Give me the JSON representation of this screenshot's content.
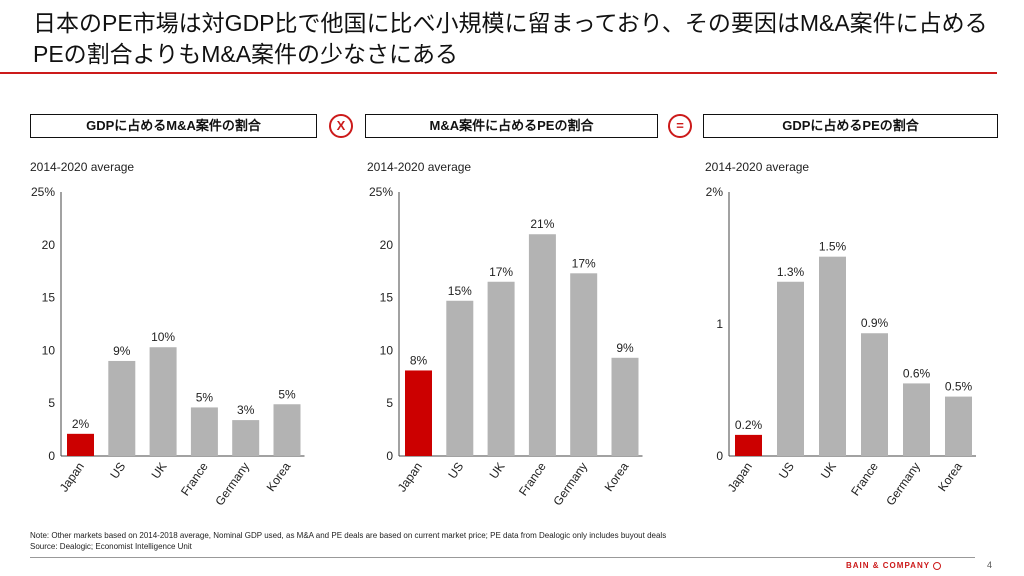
{
  "title": "日本のPE市場は対GDP比で他国に比べ小規模に留まっており、その要因はM&A案件に占めるPEの割合よりもM&A案件の少なさにある",
  "header_boxes": [
    "GDPに占めるM&A案件の割合",
    "M&A案件に占めるPEの割合",
    "GDPに占めるPEの割合"
  ],
  "operators": [
    "X",
    "="
  ],
  "subtitles": [
    "2014-2020 average",
    "2014-2020 average",
    "2014-2020 average"
  ],
  "colors": {
    "highlight": "#cc0000",
    "bar": "#b3b3b3",
    "title_rule": "#cc1a1a"
  },
  "chart_data": [
    {
      "type": "bar",
      "title": "GDPに占めるM&A案件の割合",
      "subtitle": "2014-2020 average",
      "categories": [
        "Japan",
        "US",
        "UK",
        "France",
        "Germany",
        "Korea"
      ],
      "values": [
        2.1,
        9.0,
        10.3,
        4.6,
        3.4,
        4.9
      ],
      "data_labels": [
        "2%",
        "9%",
        "10%",
        "5%",
        "3%",
        "5%"
      ],
      "ylim": [
        0,
        25
      ],
      "yticks": [
        0,
        5,
        10,
        15,
        20,
        25
      ],
      "ytick_labels": [
        "0",
        "5",
        "10",
        "15",
        "20",
        "25%"
      ],
      "highlight": "Japan"
    },
    {
      "type": "bar",
      "title": "M&A案件に占めるPEの割合",
      "subtitle": "2014-2020 average",
      "categories": [
        "Japan",
        "US",
        "UK",
        "France",
        "Germany",
        "Korea"
      ],
      "values": [
        8.1,
        14.7,
        16.5,
        21.0,
        17.3,
        9.3
      ],
      "data_labels": [
        "8%",
        "15%",
        "17%",
        "21%",
        "17%",
        "9%"
      ],
      "ylim": [
        0,
        25
      ],
      "yticks": [
        0,
        5,
        10,
        15,
        20,
        25
      ],
      "ytick_labels": [
        "0",
        "5",
        "10",
        "15",
        "20",
        "25%"
      ],
      "highlight": "Japan"
    },
    {
      "type": "bar",
      "title": "GDPに占めるPEの割合",
      "subtitle": "2014-2020 average",
      "categories": [
        "Japan",
        "US",
        "UK",
        "France",
        "Germany",
        "Korea"
      ],
      "values": [
        0.16,
        1.32,
        1.51,
        0.93,
        0.55,
        0.45
      ],
      "data_labels": [
        "0.2%",
        "1.3%",
        "1.5%",
        "0.9%",
        "0.6%",
        "0.5%"
      ],
      "ylim": [
        0,
        2
      ],
      "yticks": [
        0,
        1,
        2
      ],
      "ytick_labels": [
        "0",
        "1",
        "2%"
      ],
      "highlight": "Japan"
    }
  ],
  "note": "Note: Other markets based on 2014-2018 average, Nominal GDP used, as M&A and PE deals are based on current market price; PE data from Dealogic only includes buyout deals",
  "source": "Source: Dealogic; Economist Intelligence Unit",
  "brand": "BAIN & COMPANY",
  "page_number": "4"
}
